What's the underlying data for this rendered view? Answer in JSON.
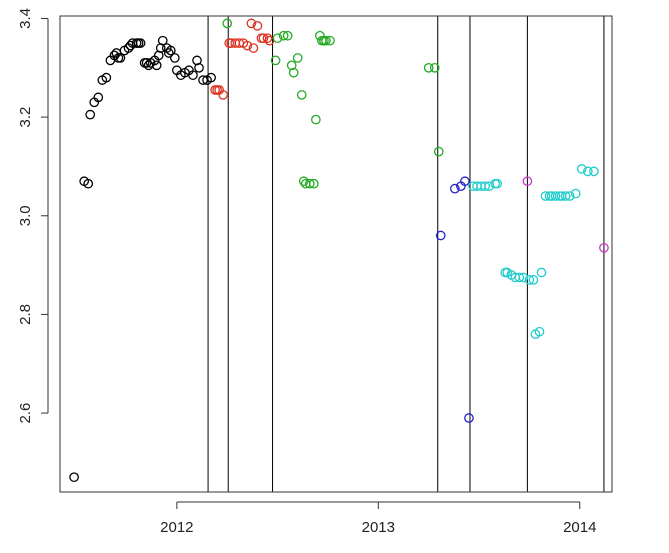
{
  "chart_data": {
    "type": "scatter",
    "title": "",
    "xlabel": "",
    "ylabel": "",
    "xlim": [
      2011.42,
      2014.16
    ],
    "ylim": [
      2.44,
      3.405
    ],
    "grid": false,
    "legend": "none",
    "x_ticks": [
      {
        "value": 2012,
        "label": "2012"
      },
      {
        "value": 2013,
        "label": "2013"
      },
      {
        "value": 2014,
        "label": "2014"
      }
    ],
    "y_ticks": [
      {
        "value": 2.6,
        "label": "2.6"
      },
      {
        "value": 2.8,
        "label": "2.8"
      },
      {
        "value": 3.0,
        "label": "3.0"
      },
      {
        "value": 3.2,
        "label": "3.2"
      },
      {
        "value": 3.4,
        "label": "3.4"
      }
    ],
    "vertical_lines": [
      2012.155,
      2012.255,
      2012.475,
      2013.295,
      2013.455,
      2013.74,
      2014.12
    ],
    "series": [
      {
        "color": "#000000",
        "x": [
          2011.49,
          2011.54,
          2011.56,
          2011.57,
          2011.59,
          2011.61,
          2011.63,
          2011.65,
          2011.67,
          2011.69,
          2011.7,
          2011.71,
          2011.72,
          2011.74,
          2011.76,
          2011.77,
          2011.78,
          2011.8,
          2011.81,
          2011.82,
          2011.84,
          2011.85,
          2011.86,
          2011.87,
          2011.89,
          2011.9,
          2011.91,
          2011.92,
          2011.93,
          2011.95,
          2011.96,
          2011.97,
          2011.99,
          2012.0,
          2012.02,
          2012.04,
          2012.06,
          2012.08,
          2012.1,
          2012.11,
          2012.13,
          2012.15,
          2012.17
        ],
        "y": [
          2.47,
          3.07,
          3.065,
          3.205,
          3.23,
          3.24,
          3.275,
          3.28,
          3.315,
          3.325,
          3.33,
          3.32,
          3.32,
          3.335,
          3.34,
          3.345,
          3.35,
          3.35,
          3.35,
          3.35,
          3.31,
          3.31,
          3.305,
          3.31,
          3.315,
          3.305,
          3.325,
          3.34,
          3.355,
          3.34,
          3.33,
          3.335,
          3.32,
          3.295,
          3.285,
          3.29,
          3.295,
          3.285,
          3.315,
          3.3,
          3.275,
          3.275,
          3.28
        ]
      },
      {
        "color": "#dd3322",
        "x": [
          2012.19,
          2012.2,
          2012.21,
          2012.23,
          2012.26,
          2012.27,
          2012.29,
          2012.31,
          2012.33,
          2012.35,
          2012.37,
          2012.38,
          2012.4,
          2012.42,
          2012.43,
          2012.45,
          2012.46
        ],
        "y": [
          3.255,
          3.255,
          3.255,
          3.245,
          3.35,
          3.35,
          3.35,
          3.35,
          3.35,
          3.345,
          3.39,
          3.34,
          3.385,
          3.36,
          3.36,
          3.36,
          3.355
        ]
      },
      {
        "color": "#22aa22",
        "x": [
          2012.25,
          2012.49,
          2012.5,
          2012.53,
          2012.55,
          2012.57,
          2012.58,
          2012.6,
          2012.62,
          2012.63,
          2012.64,
          2012.66,
          2012.68,
          2012.69,
          2012.71,
          2012.72,
          2012.73,
          2012.74,
          2012.76,
          2013.25,
          2013.28,
          2013.3
        ],
        "y": [
          3.39,
          3.315,
          3.36,
          3.365,
          3.365,
          3.305,
          3.29,
          3.32,
          3.245,
          3.07,
          3.065,
          3.065,
          3.065,
          3.195,
          3.365,
          3.355,
          3.355,
          3.355,
          3.355,
          3.3,
          3.3,
          3.13
        ]
      },
      {
        "color": "#2222cc",
        "x": [
          2013.31,
          2013.38,
          2013.41,
          2013.43,
          2013.45
        ],
        "y": [
          2.96,
          3.055,
          3.06,
          3.07,
          2.59
        ]
      },
      {
        "color": "#22cccc",
        "x": [
          2013.47,
          2013.49,
          2013.51,
          2013.53,
          2013.55,
          2013.58,
          2013.59,
          2013.63,
          2013.64,
          2013.66,
          2013.68,
          2013.7,
          2013.72,
          2013.75,
          2013.77,
          2013.78,
          2013.8,
          2013.81,
          2013.83,
          2013.85,
          2013.86,
          2013.88,
          2013.9,
          2013.91,
          2013.93,
          2013.95,
          2013.98,
          2014.01,
          2014.04,
          2014.07
        ],
        "y": [
          3.06,
          3.06,
          3.06,
          3.06,
          3.06,
          3.065,
          3.065,
          2.885,
          2.885,
          2.88,
          2.875,
          2.875,
          2.875,
          2.87,
          2.87,
          2.76,
          2.765,
          2.885,
          3.04,
          3.04,
          3.04,
          3.04,
          3.04,
          3.04,
          3.04,
          3.04,
          3.045,
          3.095,
          3.09,
          3.09
        ]
      },
      {
        "color": "#cc33cc",
        "x": [
          2013.74,
          2014.12
        ],
        "y": [
          3.07,
          2.935
        ]
      }
    ]
  }
}
